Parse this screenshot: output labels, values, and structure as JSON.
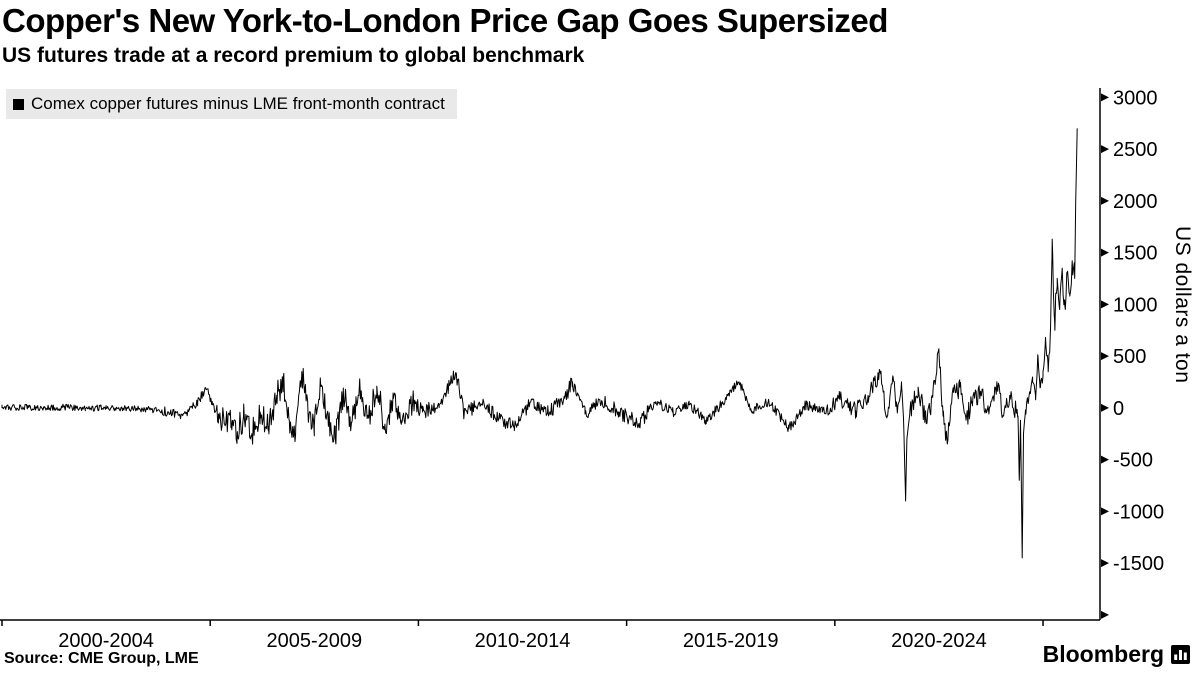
{
  "page": {
    "title": "Copper's New York-to-London Price Gap Goes Supersized",
    "subtitle": "US futures trade at a record premium to global benchmark",
    "source": "Source: CME Group, LME",
    "brand": "Bloomberg"
  },
  "legend": {
    "label": "Comex copper futures minus LME front-month contract",
    "swatch_color": "#000000"
  },
  "chart_data": {
    "type": "line",
    "title": "Copper's New York-to-London Price Gap Goes Supersized",
    "subtitle": "US futures trade at a record premium to global benchmark",
    "xlabel": "",
    "ylabel": "US dollars a ton",
    "grid": false,
    "legend_position": "top-left",
    "axis_color": "#000000",
    "ylim": [
      -2050,
      3090
    ],
    "yticks": [
      3000,
      2500,
      2000,
      1500,
      1000,
      500,
      0,
      -500,
      -1000,
      -1500
    ],
    "yticks_minor": [
      -2000
    ],
    "x_range": [
      1999.5,
      2025.7
    ],
    "xticks": [
      {
        "x": 2002,
        "label": "2000-2004"
      },
      {
        "x": 2007,
        "label": "2005-2009"
      },
      {
        "x": 2012,
        "label": "2010-2014"
      },
      {
        "x": 2017,
        "label": "2015-2019"
      },
      {
        "x": 2022,
        "label": "2020-2024"
      }
    ],
    "xtick_edges": [
      1999.5,
      2004.5,
      2009.5,
      2014.5,
      2019.5,
      2024.5
    ],
    "series": [
      {
        "name": "Comex copper futures minus LME front-month contract",
        "color": "#000000",
        "x": [
          1999.5,
          2000.0,
          2000.5,
          2001.0,
          2001.5,
          2002.0,
          2002.5,
          2003.0,
          2003.5,
          2003.8,
          2004.0,
          2004.2,
          2004.4,
          2004.55,
          2004.7,
          2004.85,
          2005.0,
          2005.15,
          2005.3,
          2005.5,
          2005.7,
          2005.9,
          2006.1,
          2006.25,
          2006.4,
          2006.55,
          2006.7,
          2006.85,
          2007.0,
          2007.15,
          2007.3,
          2007.5,
          2007.7,
          2007.9,
          2008.1,
          2008.3,
          2008.5,
          2008.7,
          2008.9,
          2009.1,
          2009.3,
          2009.6,
          2010.0,
          2010.4,
          2010.6,
          2011.0,
          2011.4,
          2011.8,
          2012.2,
          2012.6,
          2013.0,
          2013.2,
          2013.5,
          2013.9,
          2014.3,
          2014.8,
          2015.2,
          2015.6,
          2016.0,
          2016.4,
          2016.8,
          2017.2,
          2017.5,
          2017.9,
          2018.4,
          2018.8,
          2019.2,
          2019.6,
          2020.0,
          2020.3,
          2020.6,
          2020.75,
          2020.9,
          2021.0,
          2021.1,
          2021.15,
          2021.2,
          2021.23,
          2021.3,
          2021.5,
          2021.7,
          2021.85,
          2022.0,
          2022.1,
          2022.2,
          2022.35,
          2022.5,
          2022.65,
          2022.8,
          2023.0,
          2023.2,
          2023.4,
          2023.55,
          2023.7,
          2023.9,
          2023.93,
          2023.96,
          2024.0,
          2024.03,
          2024.08,
          2024.15,
          2024.25,
          2024.32,
          2024.38,
          2024.44,
          2024.5,
          2024.56,
          2024.62,
          2024.68,
          2024.72,
          2024.78,
          2024.84,
          2024.9,
          2024.96,
          2025.02,
          2025.08,
          2025.14,
          2025.2,
          2025.26,
          2025.32
        ],
        "y": [
          0,
          8,
          -6,
          5,
          -8,
          4,
          -5,
          -15,
          -40,
          -70,
          -20,
          60,
          180,
          60,
          -60,
          -160,
          -120,
          -230,
          -90,
          -250,
          -40,
          -180,
          120,
          260,
          -120,
          -260,
          350,
          -80,
          -180,
          230,
          -60,
          -290,
          120,
          -140,
          180,
          -90,
          210,
          -190,
          90,
          -120,
          60,
          -40,
          30,
          340,
          -60,
          40,
          -90,
          -180,
          60,
          -50,
          90,
          250,
          -60,
          70,
          -40,
          -150,
          60,
          -40,
          30,
          -120,
          40,
          250,
          -30,
          60,
          -200,
          30,
          -40,
          90,
          -30,
          120,
          330,
          -80,
          300,
          -50,
          250,
          -100,
          -900,
          -300,
          -60,
          200,
          -150,
          100,
          550,
          -80,
          -350,
          150,
          200,
          -120,
          60,
          150,
          -60,
          200,
          -80,
          120,
          -80,
          -700,
          -120,
          -1450,
          -250,
          -20,
          60,
          250,
          120,
          500,
          200,
          350,
          680,
          420,
          750,
          1630,
          820,
          1250,
          950,
          1350,
          1000,
          1300,
          1100,
          1420,
          1250,
          2700
        ]
      }
    ],
    "render_noise": {
      "seed": 20250507,
      "samples_per_year": 56,
      "segments": [
        [
          1999.5,
          2003.3,
          30
        ],
        [
          2003.3,
          2004.6,
          45
        ],
        [
          2004.6,
          2009.6,
          130
        ],
        [
          2009.6,
          2015.0,
          70
        ],
        [
          2015.0,
          2019.3,
          50
        ],
        [
          2019.3,
          2021.1,
          80
        ],
        [
          2021.3,
          2023.9,
          100
        ],
        [
          2024.08,
          2024.6,
          70
        ],
        [
          2024.6,
          2025.32,
          130
        ]
      ]
    }
  }
}
